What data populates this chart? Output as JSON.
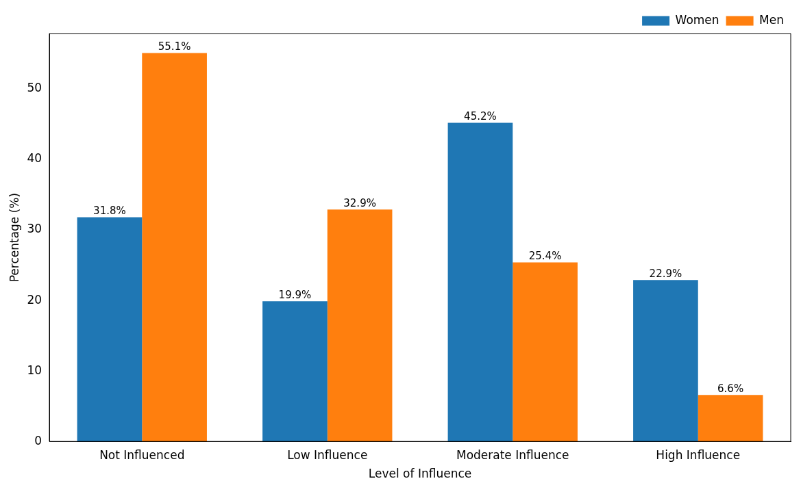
{
  "chart_data": {
    "type": "bar",
    "xlabel": "Level of Influence",
    "ylabel": "Percentage (%)",
    "categories": [
      "Not Influenced",
      "Low Influence",
      "Moderate Influence",
      "High Influence"
    ],
    "series": [
      {
        "name": "Women",
        "color": "#1f77b4",
        "values": [
          31.8,
          19.9,
          45.2,
          22.9
        ],
        "value_labels": [
          "31.8%",
          "19.9%",
          "45.2%",
          "22.9%"
        ]
      },
      {
        "name": "Men",
        "color": "#ff7f0e",
        "values": [
          55.1,
          32.9,
          25.4,
          6.6
        ],
        "value_labels": [
          "55.1%",
          "32.9%",
          "25.4%",
          "6.6%"
        ]
      }
    ],
    "ylim": [
      0,
      57.86
    ],
    "yticks": [
      0,
      10,
      20,
      30,
      40,
      50
    ],
    "grid": false,
    "legend": "top right"
  }
}
